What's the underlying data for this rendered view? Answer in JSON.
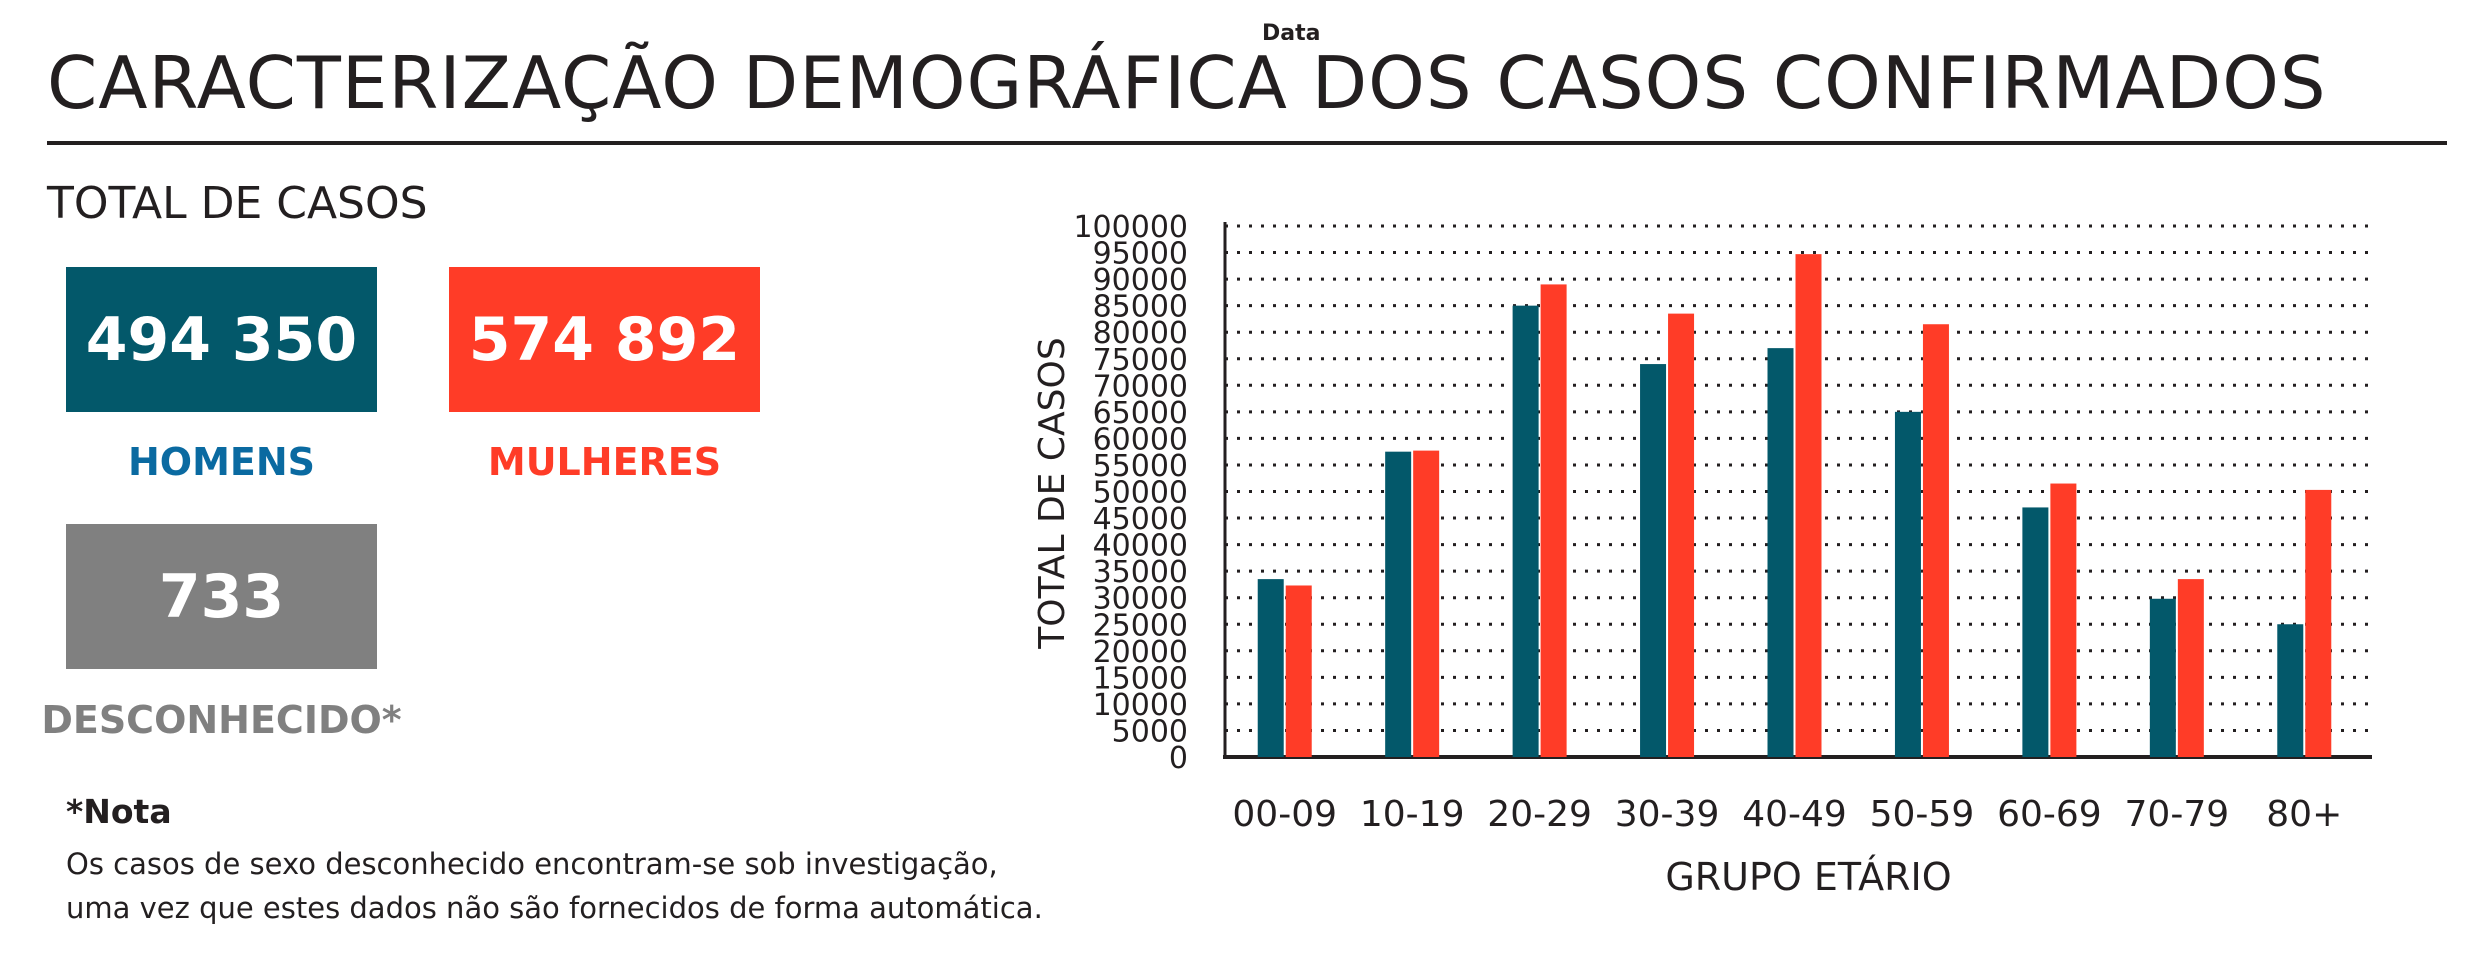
{
  "top_tag": "Data",
  "title": "CARACTERIZAÇÃO DEMOGRÁFICA DOS CASOS CONFIRMADOS",
  "total_label": "TOTAL DE CASOS",
  "colors": {
    "men": "#03586a",
    "women": "#ff3c27",
    "unknown": "#808080",
    "men_label": "#0a6aa1",
    "text": "#231f20"
  },
  "stats": {
    "men": {
      "value": "494 350",
      "label": "HOMENS"
    },
    "women": {
      "value": "574 892",
      "label": "MULHERES"
    },
    "unknown": {
      "value": "733",
      "label": "DESCONHECIDO*"
    }
  },
  "note": {
    "title": "*Nota",
    "lines": [
      "Os casos de sexo desconhecido encontram-se sob investigação,",
      "uma vez que estes dados não são fornecidos de forma automática."
    ]
  },
  "chart_data": {
    "type": "bar",
    "xlabel": "GRUPO ETÁRIO",
    "ylabel": "TOTAL DE CASOS",
    "ylim": [
      0,
      100000
    ],
    "yticks": [
      0,
      5000,
      10000,
      15000,
      20000,
      25000,
      30000,
      35000,
      40000,
      45000,
      50000,
      55000,
      60000,
      65000,
      70000,
      75000,
      80000,
      85000,
      90000,
      95000,
      100000
    ],
    "grid": true,
    "categories": [
      "00-09",
      "10-19",
      "20-29",
      "30-39",
      "40-49",
      "50-59",
      "60-69",
      "70-79",
      "80+"
    ],
    "series": [
      {
        "name": "HOMENS",
        "color": "#03586a",
        "values": [
          33500,
          57500,
          85000,
          74000,
          77000,
          65000,
          47000,
          29800,
          25000
        ]
      },
      {
        "name": "MULHERES",
        "color": "#ff3c27",
        "values": [
          32300,
          57700,
          89000,
          83500,
          94700,
          81500,
          51500,
          33500,
          50300
        ]
      }
    ]
  }
}
